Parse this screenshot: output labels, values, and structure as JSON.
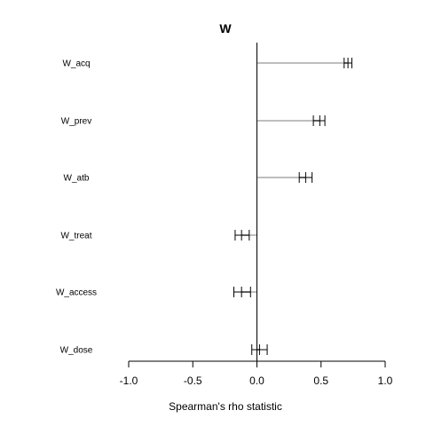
{
  "chart_data": {
    "type": "errorbar",
    "title": "W",
    "xlabel": "Spearman's rho statistic",
    "ylabel": "",
    "xlim": [
      -1.0,
      1.0
    ],
    "xticks": [
      "-1.0",
      "-0.5",
      "0.0",
      "0.5",
      "1.0"
    ],
    "grid": false,
    "categories": [
      "W_acq",
      "W_prev",
      "W_atb",
      "W_treat",
      "W_access",
      "W_dose"
    ],
    "points": [
      {
        "label": "W_acq",
        "low": 0.68,
        "mid": 0.71,
        "high": 0.74
      },
      {
        "label": "W_prev",
        "low": 0.44,
        "mid": 0.49,
        "high": 0.53
      },
      {
        "label": "W_atb",
        "low": 0.33,
        "mid": 0.38,
        "high": 0.43
      },
      {
        "label": "W_treat",
        "low": -0.17,
        "mid": -0.12,
        "high": -0.06
      },
      {
        "label": "W_access",
        "low": -0.18,
        "mid": -0.12,
        "high": -0.05
      },
      {
        "label": "W_dose",
        "low": -0.04,
        "mid": 0.02,
        "high": 0.08
      }
    ],
    "colors": {
      "bar": "#bebebe",
      "axis": "#000000",
      "whisker": "#000000"
    }
  }
}
